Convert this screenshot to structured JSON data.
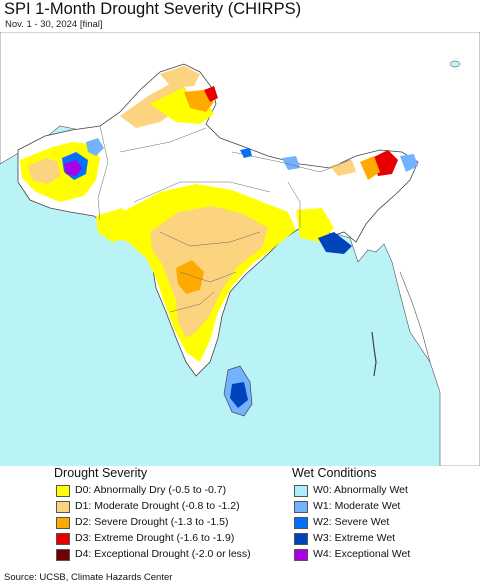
{
  "title": "SPI 1-Month Drought Severity (CHIRPS)",
  "subtitle": "Nov. 1 - 30, 2024 [final]",
  "source": "Source: UCSB, Climate Hazards Center",
  "legend": {
    "drought_heading": "Drought Severity",
    "wet_heading": "Wet Conditions",
    "drought": [
      {
        "label": "D0: Abnormally Dry (-0.5 to -0.7)",
        "color": "#ffff00"
      },
      {
        "label": "D1: Moderate Drought (-0.8 to -1.2)",
        "color": "#fcd37f"
      },
      {
        "label": "D2: Severe Drought (-1.3 to -1.5)",
        "color": "#ffaa00"
      },
      {
        "label": "D3: Extreme Drought (-1.6 to -1.9)",
        "color": "#e60000"
      },
      {
        "label": "D4: Exceptional Drought (-2.0 or less)",
        "color": "#730000"
      }
    ],
    "wet": [
      {
        "label": "W0: Abnormally Wet",
        "color": "#aaeeff"
      },
      {
        "label": "W1: Moderate Wet",
        "color": "#73b2ff"
      },
      {
        "label": "W2: Severe Wet",
        "color": "#0070ff"
      },
      {
        "label": "W3: Extreme Wet",
        "color": "#0044bb"
      },
      {
        "label": "W4: Exceptional Wet",
        "color": "#a900e6"
      }
    ]
  },
  "colors": {
    "ocean": "#b9f3f6",
    "land_outside": "#ffffff",
    "border": "#444444"
  }
}
